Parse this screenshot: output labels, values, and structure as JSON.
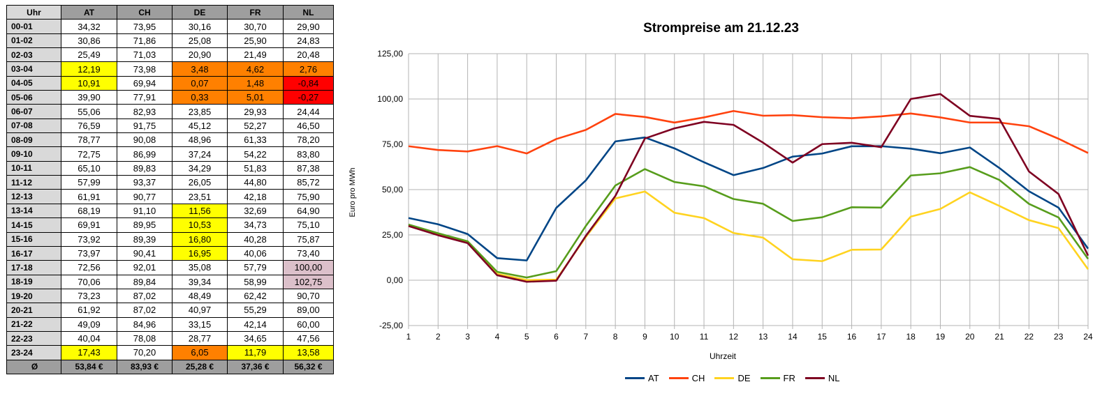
{
  "table": {
    "columns": [
      "Uhr",
      "AT",
      "CH",
      "DE",
      "FR",
      "NL"
    ],
    "rows": [
      {
        "hour": "00-01",
        "values": [
          "34,32",
          "73,95",
          "30,16",
          "30,70",
          "29,90"
        ],
        "highlight": [
          "",
          "",
          "",
          "",
          ""
        ]
      },
      {
        "hour": "01-02",
        "values": [
          "30,86",
          "71,86",
          "25,08",
          "25,90",
          "24,83"
        ],
        "highlight": [
          "",
          "",
          "",
          "",
          ""
        ]
      },
      {
        "hour": "02-03",
        "values": [
          "25,49",
          "71,03",
          "20,90",
          "21,49",
          "20,48"
        ],
        "highlight": [
          "",
          "",
          "",
          "",
          ""
        ]
      },
      {
        "hour": "03-04",
        "values": [
          "12,19",
          "73,98",
          "3,48",
          "4,62",
          "2,76"
        ],
        "highlight": [
          "yellow",
          "",
          "orange",
          "orange",
          "orange"
        ]
      },
      {
        "hour": "04-05",
        "values": [
          "10,91",
          "69,94",
          "0,07",
          "1,48",
          "-0,84"
        ],
        "highlight": [
          "yellow",
          "",
          "orange",
          "orange",
          "red"
        ]
      },
      {
        "hour": "05-06",
        "values": [
          "39,90",
          "77,91",
          "0,33",
          "5,01",
          "-0,27"
        ],
        "highlight": [
          "",
          "",
          "orange",
          "orange",
          "red"
        ]
      },
      {
        "hour": "06-07",
        "values": [
          "55,06",
          "82,93",
          "23,85",
          "29,93",
          "24,44"
        ],
        "highlight": [
          "",
          "",
          "",
          "",
          ""
        ]
      },
      {
        "hour": "07-08",
        "values": [
          "76,59",
          "91,75",
          "45,12",
          "52,27",
          "46,50"
        ],
        "highlight": [
          "",
          "",
          "",
          "",
          ""
        ]
      },
      {
        "hour": "08-09",
        "values": [
          "78,77",
          "90,08",
          "48,96",
          "61,33",
          "78,20"
        ],
        "highlight": [
          "",
          "",
          "",
          "",
          ""
        ]
      },
      {
        "hour": "09-10",
        "values": [
          "72,75",
          "86,99",
          "37,24",
          "54,22",
          "83,80"
        ],
        "highlight": [
          "",
          "",
          "",
          "",
          ""
        ]
      },
      {
        "hour": "10-11",
        "values": [
          "65,10",
          "89,83",
          "34,29",
          "51,83",
          "87,38"
        ],
        "highlight": [
          "",
          "",
          "",
          "",
          ""
        ]
      },
      {
        "hour": "11-12",
        "values": [
          "57,99",
          "93,37",
          "26,05",
          "44,80",
          "85,72"
        ],
        "highlight": [
          "",
          "",
          "",
          "",
          ""
        ]
      },
      {
        "hour": "12-13",
        "values": [
          "61,91",
          "90,77",
          "23,51",
          "42,18",
          "75,90"
        ],
        "highlight": [
          "",
          "",
          "",
          "",
          ""
        ]
      },
      {
        "hour": "13-14",
        "values": [
          "68,19",
          "91,10",
          "11,56",
          "32,69",
          "64,90"
        ],
        "highlight": [
          "",
          "",
          "yellow",
          "",
          ""
        ]
      },
      {
        "hour": "14-15",
        "values": [
          "69,91",
          "89,95",
          "10,53",
          "34,73",
          "75,10"
        ],
        "highlight": [
          "",
          "",
          "yellow",
          "",
          ""
        ]
      },
      {
        "hour": "15-16",
        "values": [
          "73,92",
          "89,39",
          "16,80",
          "40,28",
          "75,87"
        ],
        "highlight": [
          "",
          "",
          "yellow",
          "",
          ""
        ]
      },
      {
        "hour": "16-17",
        "values": [
          "73,97",
          "90,41",
          "16,95",
          "40,06",
          "73,40"
        ],
        "highlight": [
          "",
          "",
          "yellow",
          "",
          ""
        ]
      },
      {
        "hour": "17-18",
        "values": [
          "72,56",
          "92,01",
          "35,08",
          "57,79",
          "100,00"
        ],
        "highlight": [
          "",
          "",
          "",
          "",
          "pink"
        ]
      },
      {
        "hour": "18-19",
        "values": [
          "70,06",
          "89,84",
          "39,34",
          "58,99",
          "102,75"
        ],
        "highlight": [
          "",
          "",
          "",
          "",
          "pink"
        ]
      },
      {
        "hour": "19-20",
        "values": [
          "73,23",
          "87,02",
          "48,49",
          "62,42",
          "90,70"
        ],
        "highlight": [
          "",
          "",
          "",
          "",
          ""
        ]
      },
      {
        "hour": "20-21",
        "values": [
          "61,92",
          "87,02",
          "40,97",
          "55,29",
          "89,00"
        ],
        "highlight": [
          "",
          "",
          "",
          "",
          ""
        ]
      },
      {
        "hour": "21-22",
        "values": [
          "49,09",
          "84,96",
          "33,15",
          "42,14",
          "60,00"
        ],
        "highlight": [
          "",
          "",
          "",
          "",
          ""
        ]
      },
      {
        "hour": "22-23",
        "values": [
          "40,04",
          "78,08",
          "28,77",
          "34,65",
          "47,56"
        ],
        "highlight": [
          "",
          "",
          "",
          "",
          ""
        ]
      },
      {
        "hour": "23-24",
        "values": [
          "17,43",
          "70,20",
          "6,05",
          "11,79",
          "13,58"
        ],
        "highlight": [
          "yellow",
          "",
          "orange",
          "yellow",
          "yellow"
        ]
      }
    ],
    "average": {
      "label": "Ø",
      "values": [
        "53,84 €",
        "83,93 €",
        "25,28 €",
        "37,36 €",
        "56,32 €"
      ]
    }
  },
  "highlight_colors": {
    "yellow": "#ffff00",
    "orange": "#ff8000",
    "red": "#ff0000",
    "pink": "#dcc0ca"
  },
  "chart_data": {
    "type": "line",
    "title": "Strompreise am 21.12.23",
    "xlabel": "Uhrzeit",
    "ylabel": "Euro pro MWh",
    "x": [
      1,
      2,
      3,
      4,
      5,
      6,
      7,
      8,
      9,
      10,
      11,
      12,
      13,
      14,
      15,
      16,
      17,
      18,
      19,
      20,
      21,
      22,
      23,
      24
    ],
    "xlim": [
      1,
      24
    ],
    "ylim": [
      -25,
      125
    ],
    "yticks": [
      "-25,00",
      "0,00",
      "25,00",
      "50,00",
      "75,00",
      "100,00",
      "125,00"
    ],
    "grid": true,
    "legend": "bottom",
    "series": [
      {
        "name": "AT",
        "color": "#004586",
        "values": [
          34.32,
          30.86,
          25.49,
          12.19,
          10.91,
          39.9,
          55.06,
          76.59,
          78.77,
          72.75,
          65.1,
          57.99,
          61.91,
          68.19,
          69.91,
          73.92,
          73.97,
          72.56,
          70.06,
          73.23,
          61.92,
          49.09,
          40.04,
          17.43
        ]
      },
      {
        "name": "CH",
        "color": "#ff420e",
        "values": [
          73.95,
          71.86,
          71.03,
          73.98,
          69.94,
          77.91,
          82.93,
          91.75,
          90.08,
          86.99,
          89.83,
          93.37,
          90.77,
          91.1,
          89.95,
          89.39,
          90.41,
          92.01,
          89.84,
          87.02,
          87.02,
          84.96,
          78.08,
          70.2
        ]
      },
      {
        "name": "DE",
        "color": "#ffd320",
        "values": [
          30.16,
          25.08,
          20.9,
          3.48,
          0.07,
          0.33,
          23.85,
          45.12,
          48.96,
          37.24,
          34.29,
          26.05,
          23.51,
          11.56,
          10.53,
          16.8,
          16.95,
          35.08,
          39.34,
          48.49,
          40.97,
          33.15,
          28.77,
          6.05
        ]
      },
      {
        "name": "FR",
        "color": "#579d1c",
        "values": [
          30.7,
          25.9,
          21.49,
          4.62,
          1.48,
          5.01,
          29.93,
          52.27,
          61.33,
          54.22,
          51.83,
          44.8,
          42.18,
          32.69,
          34.73,
          40.28,
          40.06,
          57.79,
          58.99,
          62.42,
          55.29,
          42.14,
          34.65,
          11.79
        ]
      },
      {
        "name": "NL",
        "color": "#7e0021",
        "values": [
          29.9,
          24.83,
          20.48,
          2.76,
          -0.84,
          -0.27,
          24.44,
          46.5,
          78.2,
          83.8,
          87.38,
          85.72,
          75.9,
          64.9,
          75.1,
          75.87,
          73.4,
          100.0,
          102.75,
          90.7,
          89.0,
          60.0,
          47.56,
          13.58
        ]
      }
    ]
  }
}
